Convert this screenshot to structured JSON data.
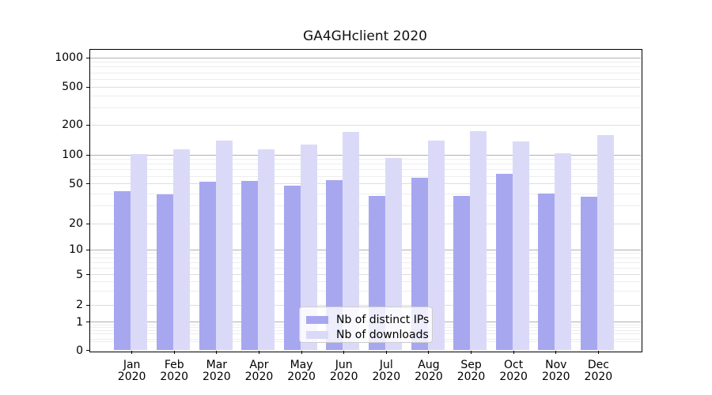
{
  "chart_data": {
    "type": "bar",
    "title": "GA4GHclient 2020",
    "categories": [
      "Jan",
      "Feb",
      "Mar",
      "Apr",
      "May",
      "Jun",
      "Jul",
      "Aug",
      "Sep",
      "Oct",
      "Nov",
      "Dec"
    ],
    "x_tick_second_line": "2020",
    "series": [
      {
        "name": "Nb of distinct IPs",
        "color": "#a7a7f0",
        "values": [
          42,
          39,
          53,
          54,
          48,
          55,
          38,
          58,
          38,
          63,
          40,
          37
        ]
      },
      {
        "name": "Nb of downloads",
        "color": "#dadaf8",
        "values": [
          102,
          113,
          140,
          113,
          127,
          170,
          93,
          138,
          173,
          137,
          104,
          157
        ]
      }
    ],
    "y_axis": {
      "scale": "logarithmic-with-zero",
      "ticks": [
        0,
        1,
        2,
        5,
        10,
        20,
        50,
        100,
        200,
        500,
        1000
      ]
    },
    "legend": {
      "location": "inside-bottom-center",
      "entries": [
        "Nb of distinct IPs",
        "Nb of downloads"
      ]
    },
    "colors": {
      "major_grid": "#b0b0b0",
      "mid_grid": "#dddddd",
      "minor_grid": "#ededed",
      "spine": "#000000",
      "background": "#ffffff"
    }
  }
}
